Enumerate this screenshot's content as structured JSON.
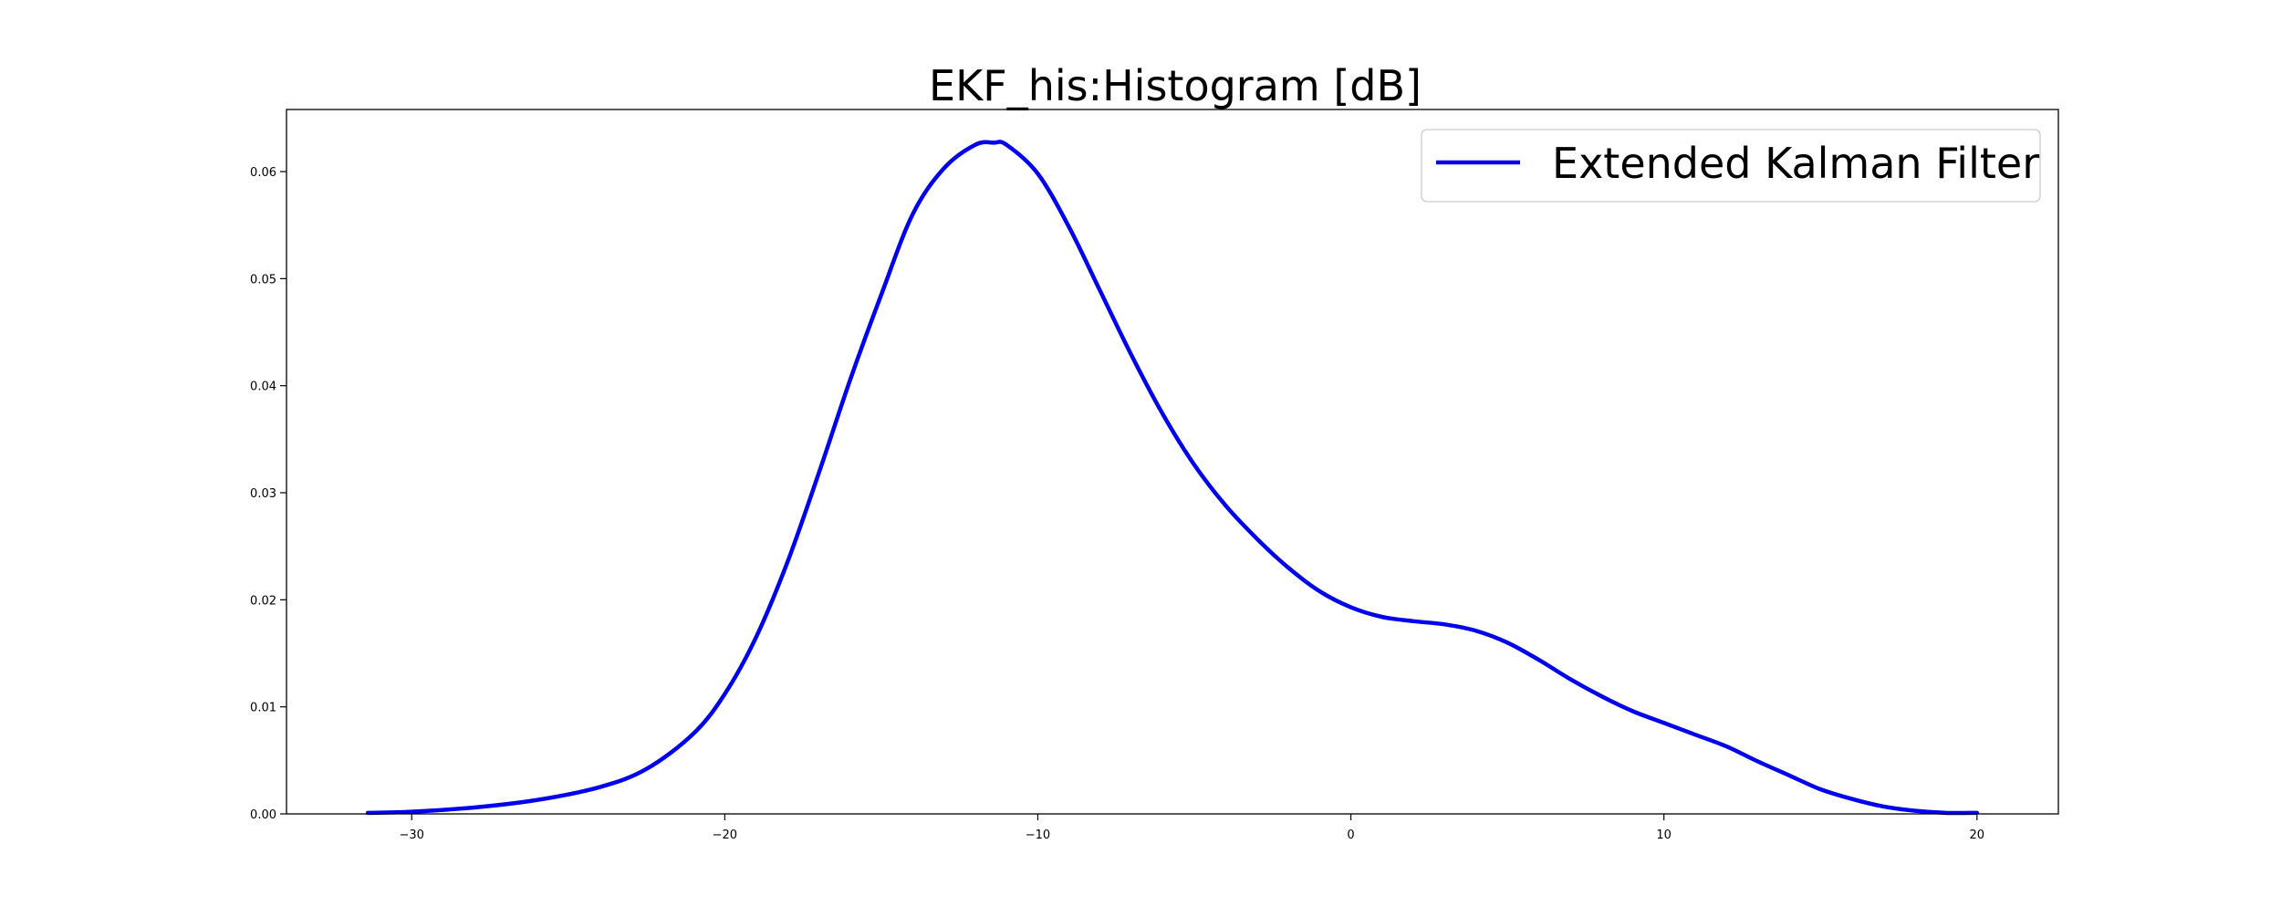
{
  "chart_data": {
    "type": "line",
    "title": "EKF_his:Histogram [dB]",
    "xlabel": "",
    "ylabel": "",
    "xlim": [
      -34,
      22.6
    ],
    "ylim": [
      0,
      0.0658
    ],
    "xticks": [
      -30,
      -20,
      -10,
      0,
      10,
      20
    ],
    "xtick_labels": [
      "−30",
      "−20",
      "−10",
      "0",
      "10",
      "20"
    ],
    "yticks": [
      0.0,
      0.01,
      0.02,
      0.03,
      0.04,
      0.05,
      0.06
    ],
    "ytick_labels": [
      "0.00",
      "0.01",
      "0.02",
      "0.03",
      "0.04",
      "0.05",
      "0.06"
    ],
    "grid": false,
    "legend_position": "top-right",
    "series": [
      {
        "name": "Extended Kalman Filter",
        "color": "#0000ee",
        "x": [
          -31.4,
          -30,
          -28,
          -26,
          -24,
          -22.5,
          -21,
          -20,
          -19,
          -18,
          -17,
          -16,
          -15,
          -14,
          -13,
          -12,
          -11.4,
          -11,
          -10,
          -9,
          -8,
          -7,
          -6,
          -5,
          -4,
          -3,
          -2,
          -1,
          0,
          1,
          2,
          3,
          4,
          5,
          6,
          7,
          8,
          9,
          10,
          11,
          12,
          13,
          14,
          15,
          16,
          17,
          18,
          19,
          20
        ],
        "y": [
          0.0001,
          0.0002,
          0.0006,
          0.0013,
          0.0025,
          0.0042,
          0.0075,
          0.0112,
          0.0165,
          0.0235,
          0.0318,
          0.0405,
          0.0485,
          0.056,
          0.0603,
          0.0625,
          0.0627,
          0.0625,
          0.0598,
          0.0548,
          0.0488,
          0.0428,
          0.0373,
          0.0326,
          0.0288,
          0.0257,
          0.023,
          0.0208,
          0.0193,
          0.0184,
          0.018,
          0.0177,
          0.0171,
          0.016,
          0.0144,
          0.0126,
          0.011,
          0.0096,
          0.0085,
          0.0074,
          0.0063,
          0.0049,
          0.0036,
          0.0023,
          0.0014,
          0.0007,
          0.0003,
          0.0001,
          0.0001
        ]
      }
    ]
  }
}
